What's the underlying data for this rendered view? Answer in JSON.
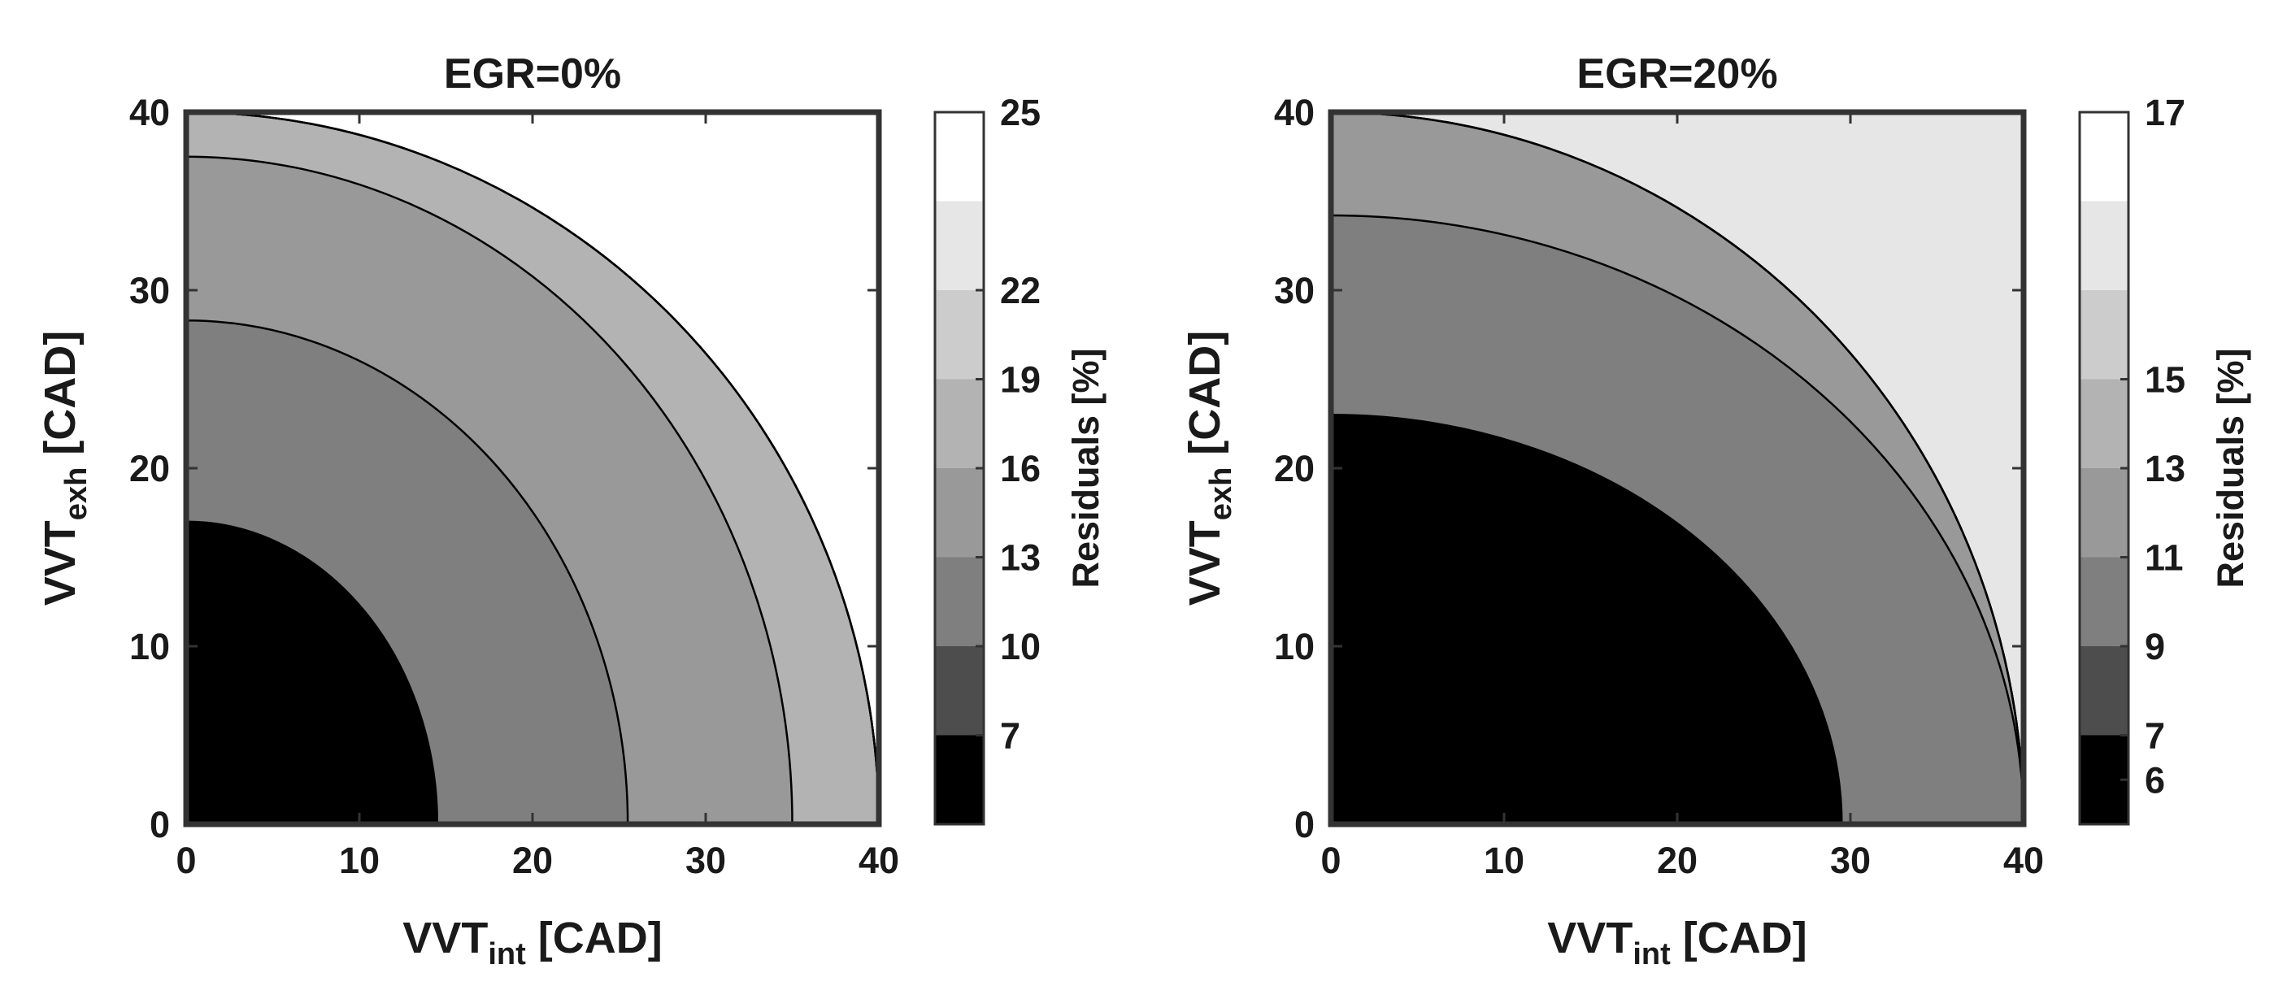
{
  "chart_data": [
    {
      "type": "contour",
      "title": "EGR=0%",
      "xlabel": {
        "main": "VVT",
        "sub": "int",
        "unit": " [CAD]"
      },
      "ylabel": {
        "main": "VVT",
        "sub": "exh",
        "unit": " [CAD]"
      },
      "xlim": [
        0,
        40
      ],
      "ylim": [
        0,
        40
      ],
      "xticks": [
        "0",
        "10",
        "20",
        "30",
        "40"
      ],
      "yticks": [
        "0",
        "10",
        "20",
        "30",
        "40"
      ],
      "colormap": "gray",
      "contour_levels": [
        7,
        10,
        13,
        16,
        19,
        22
      ],
      "contour_x_intercepts": [
        14.5,
        25.5,
        35,
        40,
        40,
        40
      ],
      "contour_y_intercepts": [
        17,
        28.3,
        37.5,
        40,
        40,
        40
      ],
      "colorbar": {
        "label": "Residuals [%]",
        "range": [
          5,
          25
        ],
        "ticks": [
          "7",
          "10",
          "13",
          "16",
          "19",
          "22",
          "25"
        ],
        "band_colors": [
          "#000000",
          "#4d4d4d",
          "#7f7f7f",
          "#999999",
          "#b3b3b3",
          "#cccccc",
          "#e6e6e6",
          "#ffffff"
        ]
      }
    },
    {
      "type": "contour",
      "title": "EGR=20%",
      "xlabel": {
        "main": "VVT",
        "sub": "int",
        "unit": " [CAD]"
      },
      "ylabel": {
        "main": "VVT",
        "sub": "exh",
        "unit": " [CAD]"
      },
      "xlim": [
        0,
        40
      ],
      "ylim": [
        0,
        40
      ],
      "xticks": [
        "0",
        "10",
        "20",
        "30",
        "40"
      ],
      "yticks": [
        "0",
        "10",
        "20",
        "30",
        "40"
      ],
      "colormap": "gray",
      "contour_levels": [
        7,
        9,
        11,
        13,
        15
      ],
      "contour_x_intercepts": [
        29.5,
        40,
        40,
        40,
        40
      ],
      "contour_y_intercepts": [
        23,
        34.2,
        40,
        40,
        40
      ],
      "colorbar": {
        "label": "Residuals [%]",
        "range": [
          5.5,
          17
        ],
        "ticks": [
          "6",
          "7",
          "9",
          "11",
          "13",
          "15",
          "17"
        ],
        "band_colors": [
          "#000000",
          "#4d4d4d",
          "#7f7f7f",
          "#999999",
          "#b3b3b3",
          "#cccccc",
          "#e6e6e6",
          "#ffffff"
        ]
      }
    }
  ]
}
